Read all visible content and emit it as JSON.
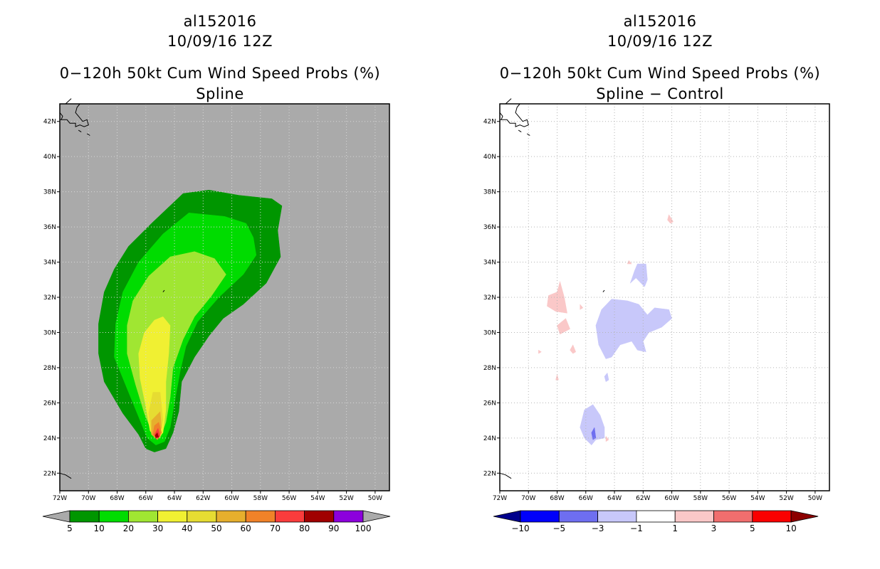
{
  "left": {
    "title": {
      "line1": "al152016",
      "line2": "10/09/16 12Z",
      "line3": "0−120h 50kt Cum Wind Speed Probs (%)",
      "line4": "Spline"
    }
  },
  "right": {
    "title": {
      "line1": "al152016",
      "line2": "10/09/16 12Z",
      "line3": "0−120h 50kt Cum Wind Speed Probs (%)",
      "line4": "Spline − Control"
    }
  },
  "chart_data": [
    {
      "type": "heatmap",
      "title": "0−120h 50kt Cum Wind Speed Probs (%)",
      "subtitle": "Spline",
      "storm": "al152016",
      "valid": "10/09/16 12Z",
      "lon_range": [
        -72,
        -49
      ],
      "lat_range": [
        21,
        43
      ],
      "x_ticks": [
        "72W",
        "70W",
        "68W",
        "66W",
        "64W",
        "62W",
        "60W",
        "58W",
        "56W",
        "54W",
        "52W",
        "50W"
      ],
      "y_ticks": [
        "22N",
        "24N",
        "26N",
        "28N",
        "30N",
        "32N",
        "34N",
        "36N",
        "38N",
        "40N",
        "42N"
      ],
      "background_color": "#aaaaaa",
      "colorbar": {
        "labels": [
          "5",
          "10",
          "20",
          "30",
          "40",
          "50",
          "60",
          "70",
          "80",
          "90",
          "100"
        ],
        "colors": [
          "#009600",
          "#00dc00",
          "#a0e632",
          "#f0f032",
          "#e6dc32",
          "#e6af2d",
          "#f08228",
          "#fa3c3c",
          "#a00000",
          "#8c00dc"
        ]
      },
      "contours": [
        {
          "level": 5,
          "color": "#009600",
          "points": [
            [
              -63.4,
              37.9
            ],
            [
              -61.6,
              38.1
            ],
            [
              -59.5,
              37.8
            ],
            [
              -57.2,
              37.6
            ],
            [
              -56.5,
              37.2
            ],
            [
              -56.8,
              35.8
            ],
            [
              -56.6,
              34.3
            ],
            [
              -57.6,
              32.8
            ],
            [
              -59.2,
              31.6
            ],
            [
              -60.6,
              30.8
            ],
            [
              -61.6,
              29.8
            ],
            [
              -62.6,
              28.6
            ],
            [
              -63.5,
              27.2
            ],
            [
              -63.7,
              25.5
            ],
            [
              -64.1,
              24.3
            ],
            [
              -64.6,
              23.4
            ],
            [
              -65.4,
              23.2
            ],
            [
              -66.0,
              23.4
            ],
            [
              -66.5,
              24.2
            ],
            [
              -67.6,
              25.4
            ],
            [
              -68.9,
              27.2
            ],
            [
              -69.3,
              28.8
            ],
            [
              -69.3,
              30.5
            ],
            [
              -68.9,
              32.3
            ],
            [
              -68.2,
              33.6
            ],
            [
              -67.2,
              34.9
            ],
            [
              -65.6,
              36.2
            ]
          ]
        },
        {
          "level": 10,
          "color": "#00dc00",
          "points": [
            [
              -63.0,
              36.8
            ],
            [
              -60.5,
              36.6
            ],
            [
              -59.0,
              36.2
            ],
            [
              -58.5,
              35.4
            ],
            [
              -58.3,
              34.4
            ],
            [
              -59.2,
              33.3
            ],
            [
              -60.9,
              32.0
            ],
            [
              -62.4,
              30.6
            ],
            [
              -63.2,
              29.2
            ],
            [
              -63.6,
              27.8
            ],
            [
              -64.0,
              26.0
            ],
            [
              -64.3,
              24.6
            ],
            [
              -64.7,
              23.8
            ],
            [
              -65.3,
              23.6
            ],
            [
              -65.9,
              24.0
            ],
            [
              -66.5,
              25.2
            ],
            [
              -67.3,
              26.8
            ],
            [
              -68.2,
              28.6
            ],
            [
              -68.1,
              30.5
            ],
            [
              -67.6,
              32.3
            ],
            [
              -66.5,
              34.0
            ],
            [
              -64.8,
              35.6
            ]
          ]
        },
        {
          "level": 20,
          "color": "#a0e632",
          "points": [
            [
              -62.6,
              34.6
            ],
            [
              -61.2,
              34.2
            ],
            [
              -60.4,
              33.3
            ],
            [
              -61.4,
              32.1
            ],
            [
              -62.6,
              30.9
            ],
            [
              -63.4,
              29.6
            ],
            [
              -64.1,
              28.0
            ],
            [
              -64.3,
              26.3
            ],
            [
              -64.6,
              24.9
            ],
            [
              -65.0,
              24.0
            ],
            [
              -65.6,
              24.4
            ],
            [
              -66.1,
              25.4
            ],
            [
              -66.7,
              27.0
            ],
            [
              -67.3,
              28.8
            ],
            [
              -67.3,
              30.4
            ],
            [
              -66.9,
              31.8
            ],
            [
              -65.8,
              33.2
            ],
            [
              -64.3,
              34.3
            ]
          ]
        },
        {
          "level": 30,
          "color": "#f0f032",
          "points": [
            [
              -64.8,
              30.9
            ],
            [
              -64.3,
              30.4
            ],
            [
              -64.4,
              28.8
            ],
            [
              -64.6,
              27.2
            ],
            [
              -64.6,
              25.6
            ],
            [
              -64.8,
              24.3
            ],
            [
              -65.2,
              23.9
            ],
            [
              -65.7,
              24.4
            ],
            [
              -66.0,
              25.8
            ],
            [
              -66.4,
              27.4
            ],
            [
              -66.5,
              28.8
            ],
            [
              -66.1,
              30.0
            ],
            [
              -65.4,
              30.7
            ]
          ]
        },
        {
          "level": 40,
          "color": "#e6dc32",
          "points": [
            [
              -65.0,
              26.6
            ],
            [
              -64.8,
              25.0
            ],
            [
              -65.1,
              24.0
            ],
            [
              -65.6,
              24.2
            ],
            [
              -65.8,
              25.4
            ],
            [
              -65.5,
              26.6
            ]
          ]
        },
        {
          "level": 50,
          "color": "#e6af2d",
          "points": [
            [
              -65.0,
              25.5
            ],
            [
              -64.9,
              24.6
            ],
            [
              -65.2,
              23.9
            ],
            [
              -65.6,
              24.2
            ],
            [
              -65.6,
              25.0
            ]
          ]
        },
        {
          "level": 60,
          "color": "#f08228",
          "points": [
            [
              -65.1,
              24.9
            ],
            [
              -64.9,
              24.3
            ],
            [
              -65.2,
              23.9
            ],
            [
              -65.5,
              24.2
            ],
            [
              -65.4,
              24.7
            ]
          ]
        },
        {
          "level": 70,
          "color": "#fa3c3c",
          "points": [
            [
              -65.15,
              24.55
            ],
            [
              -65.0,
              24.1
            ],
            [
              -65.25,
              23.95
            ],
            [
              -65.4,
              24.2
            ]
          ]
        },
        {
          "level": 80,
          "color": "#a00000",
          "points": [
            [
              -65.2,
              24.3
            ],
            [
              -65.1,
              24.05
            ],
            [
              -65.3,
              24.0
            ],
            [
              -65.35,
              24.15
            ]
          ]
        }
      ]
    },
    {
      "type": "heatmap",
      "title": "0−120h 50kt Cum Wind Speed Probs (%)",
      "subtitle": "Spline − Control",
      "storm": "al152016",
      "valid": "10/09/16 12Z",
      "lon_range": [
        -72,
        -49
      ],
      "lat_range": [
        21,
        43
      ],
      "x_ticks": [
        "72W",
        "70W",
        "68W",
        "66W",
        "64W",
        "62W",
        "60W",
        "58W",
        "56W",
        "54W",
        "52W",
        "50W"
      ],
      "y_ticks": [
        "22N",
        "24N",
        "26N",
        "28N",
        "30N",
        "32N",
        "34N",
        "36N",
        "38N",
        "40N",
        "42N"
      ],
      "background_color": "#ffffff",
      "grid": true,
      "colorbar": {
        "labels": [
          "−10",
          "−5",
          "−3",
          "−1",
          "1",
          "3",
          "5",
          "10"
        ],
        "colors": [
          "#00008c",
          "#0000fa",
          "#6e6ef0",
          "#c8c8fa",
          "#ffffff",
          "#fac8c8",
          "#f06e6e",
          "#fa0000",
          "#8c0000"
        ]
      },
      "contours": [
        {
          "level": -3,
          "color": "#c8c8fa",
          "points": [
            [
              -63.1,
              31.8
            ],
            [
              -62.3,
              31.6
            ],
            [
              -61.7,
              31.0
            ],
            [
              -61.2,
              31.4
            ],
            [
              -60.2,
              31.3
            ],
            [
              -60.0,
              30.8
            ],
            [
              -60.7,
              30.3
            ],
            [
              -61.6,
              30.0
            ],
            [
              -62.0,
              29.5
            ],
            [
              -61.8,
              28.9
            ],
            [
              -62.4,
              29.0
            ],
            [
              -62.8,
              29.5
            ],
            [
              -63.6,
              29.3
            ],
            [
              -64.2,
              28.6
            ],
            [
              -64.6,
              28.5
            ],
            [
              -65.1,
              29.3
            ],
            [
              -65.3,
              30.4
            ],
            [
              -64.9,
              31.3
            ],
            [
              -64.2,
              31.9
            ]
          ]
        },
        {
          "level": -3,
          "color": "#c8c8fa",
          "points": [
            [
              -62.4,
              33.9
            ],
            [
              -61.8,
              33.9
            ],
            [
              -61.7,
              33.0
            ],
            [
              -61.9,
              32.6
            ],
            [
              -62.5,
              33.1
            ],
            [
              -62.9,
              32.8
            ],
            [
              -62.6,
              33.5
            ]
          ]
        },
        {
          "level": -3,
          "color": "#c8c8fa",
          "points": [
            [
              -65.5,
              25.9
            ],
            [
              -65.0,
              25.3
            ],
            [
              -64.7,
              24.6
            ],
            [
              -64.7,
              24.0
            ],
            [
              -65.3,
              23.9
            ],
            [
              -65.6,
              23.6
            ],
            [
              -66.1,
              24.0
            ],
            [
              -66.4,
              24.6
            ],
            [
              -66.1,
              25.6
            ]
          ]
        },
        {
          "level": -3,
          "color": "#c8c8fa",
          "points": [
            [
              -64.5,
              27.7
            ],
            [
              -64.4,
              27.3
            ],
            [
              -64.6,
              27.2
            ],
            [
              -64.7,
              27.5
            ]
          ]
        },
        {
          "level": -5,
          "color": "#6e6ef0",
          "points": [
            [
              -65.4,
              24.6
            ],
            [
              -65.3,
              24.0
            ],
            [
              -65.5,
              23.9
            ],
            [
              -65.6,
              24.3
            ]
          ]
        },
        {
          "level": 3,
          "color": "#fac8c8",
          "points": [
            [
              -67.8,
              32.9
            ],
            [
              -67.5,
              32.0
            ],
            [
              -67.3,
              31.1
            ],
            [
              -68.1,
              31.2
            ],
            [
              -68.7,
              31.5
            ],
            [
              -68.6,
              32.1
            ],
            [
              -68.0,
              32.3
            ]
          ]
        },
        {
          "level": 3,
          "color": "#fac8c8",
          "points": [
            [
              -67.4,
              30.8
            ],
            [
              -67.1,
              30.2
            ],
            [
              -67.8,
              29.9
            ],
            [
              -68.0,
              30.4
            ]
          ]
        },
        {
          "level": 3,
          "color": "#fac8c8",
          "points": [
            [
              -60.2,
              36.7
            ],
            [
              -59.9,
              36.3
            ],
            [
              -60.1,
              36.2
            ],
            [
              -60.3,
              36.4
            ]
          ]
        },
        {
          "level": 3,
          "color": "#fac8c8",
          "points": [
            [
              -66.9,
              29.3
            ],
            [
              -66.7,
              28.9
            ],
            [
              -66.9,
              28.8
            ],
            [
              -67.1,
              29.0
            ]
          ]
        },
        {
          "level": 3,
          "color": "#fac8c8",
          "points": [
            [
              -66.4,
              31.6
            ],
            [
              -66.2,
              31.4
            ],
            [
              -66.4,
              31.3
            ]
          ]
        },
        {
          "level": 3,
          "color": "#fac8c8",
          "points": [
            [
              -63.0,
              34.1
            ],
            [
              -62.8,
              33.9
            ],
            [
              -63.1,
              33.9
            ]
          ]
        },
        {
          "level": 3,
          "color": "#fac8c8",
          "points": [
            [
              -64.6,
              24.1
            ],
            [
              -64.4,
              23.9
            ],
            [
              -64.6,
              23.8
            ]
          ]
        },
        {
          "level": 3,
          "color": "#fac8c8",
          "points": [
            [
              -68.0,
              27.6
            ],
            [
              -67.9,
              27.3
            ],
            [
              -68.1,
              27.3
            ]
          ]
        },
        {
          "level": 3,
          "color": "#fac8c8",
          "points": [
            [
              -69.3,
              29.0
            ],
            [
              -69.1,
              28.9
            ],
            [
              -69.3,
              28.8
            ]
          ]
        }
      ]
    }
  ]
}
